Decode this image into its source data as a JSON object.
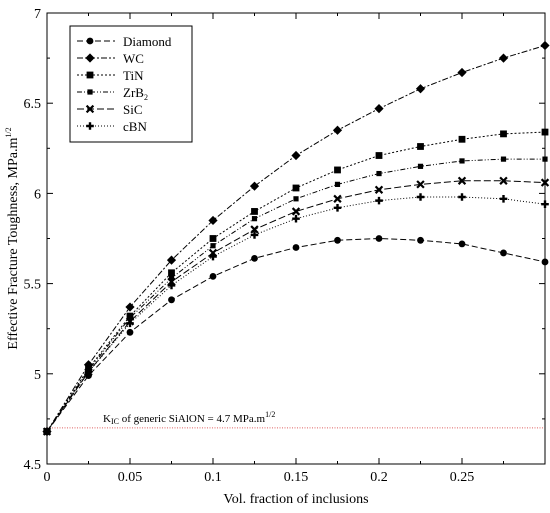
{
  "chart_data": {
    "type": "line",
    "xlabel": "Vol. fraction of inclusions",
    "ylabel_main": "Effective Fracture Toughness, MPa.m",
    "ylabel_sup": "1/2",
    "xlim": [
      0,
      0.3
    ],
    "ylim": [
      4.5,
      7
    ],
    "x_ticks": [
      0,
      0.05,
      0.1,
      0.15,
      0.2,
      0.25
    ],
    "x_tick_labels": [
      "0",
      "0.05",
      "0.1",
      "0.15",
      "0.2",
      "0.25"
    ],
    "y_ticks": [
      4.5,
      5,
      5.5,
      6,
      6.5,
      7
    ],
    "y_tick_labels": [
      "4.5",
      "5",
      "5.5",
      "6",
      "6.5",
      "7"
    ],
    "grid": false,
    "legend_position": "top-left",
    "x": [
      0,
      0.025,
      0.05,
      0.075,
      0.1,
      0.125,
      0.15,
      0.175,
      0.2,
      0.225,
      0.25,
      0.275,
      0.3
    ],
    "series": [
      {
        "name": "Diamond",
        "name_sub": "",
        "marker": "circle",
        "dash": "6,3",
        "values": [
          4.68,
          4.99,
          5.23,
          5.41,
          5.54,
          5.64,
          5.7,
          5.74,
          5.75,
          5.74,
          5.72,
          5.67,
          5.62
        ]
      },
      {
        "name": "WC",
        "name_sub": "",
        "marker": "diamond",
        "dash": "6,2,2,2",
        "values": [
          4.68,
          5.05,
          5.37,
          5.63,
          5.85,
          6.04,
          6.21,
          6.35,
          6.47,
          6.58,
          6.67,
          6.75,
          6.82
        ]
      },
      {
        "name": "TiN",
        "name_sub": "",
        "marker": "square",
        "dash": "2,2",
        "values": [
          4.68,
          5.03,
          5.32,
          5.56,
          5.75,
          5.9,
          6.03,
          6.13,
          6.21,
          6.26,
          6.3,
          6.33,
          6.34
        ]
      },
      {
        "name": "ZrB",
        "name_sub": "2",
        "marker": "smallsquare",
        "dash": "5,2,1,2,1,2",
        "values": [
          4.68,
          5.02,
          5.31,
          5.53,
          5.71,
          5.86,
          5.97,
          6.05,
          6.11,
          6.15,
          6.18,
          6.19,
          6.19
        ]
      },
      {
        "name": "SiC",
        "name_sub": "",
        "marker": "x",
        "dash": "7,3",
        "values": [
          4.68,
          5.01,
          5.29,
          5.51,
          5.67,
          5.8,
          5.9,
          5.97,
          6.02,
          6.05,
          6.07,
          6.07,
          6.06
        ]
      },
      {
        "name": "cBN",
        "name_sub": "",
        "marker": "plus",
        "dash": "1,2",
        "values": [
          4.68,
          5.01,
          5.28,
          5.49,
          5.65,
          5.77,
          5.86,
          5.92,
          5.96,
          5.98,
          5.98,
          5.97,
          5.94
        ]
      }
    ],
    "reference_line": {
      "y": 4.7,
      "color": "#e06060",
      "label_pre": "K",
      "label_sub": "IC",
      "label_mid": " of generic SiAlON = 4.7 MPa.m",
      "label_sup": "1/2"
    }
  }
}
